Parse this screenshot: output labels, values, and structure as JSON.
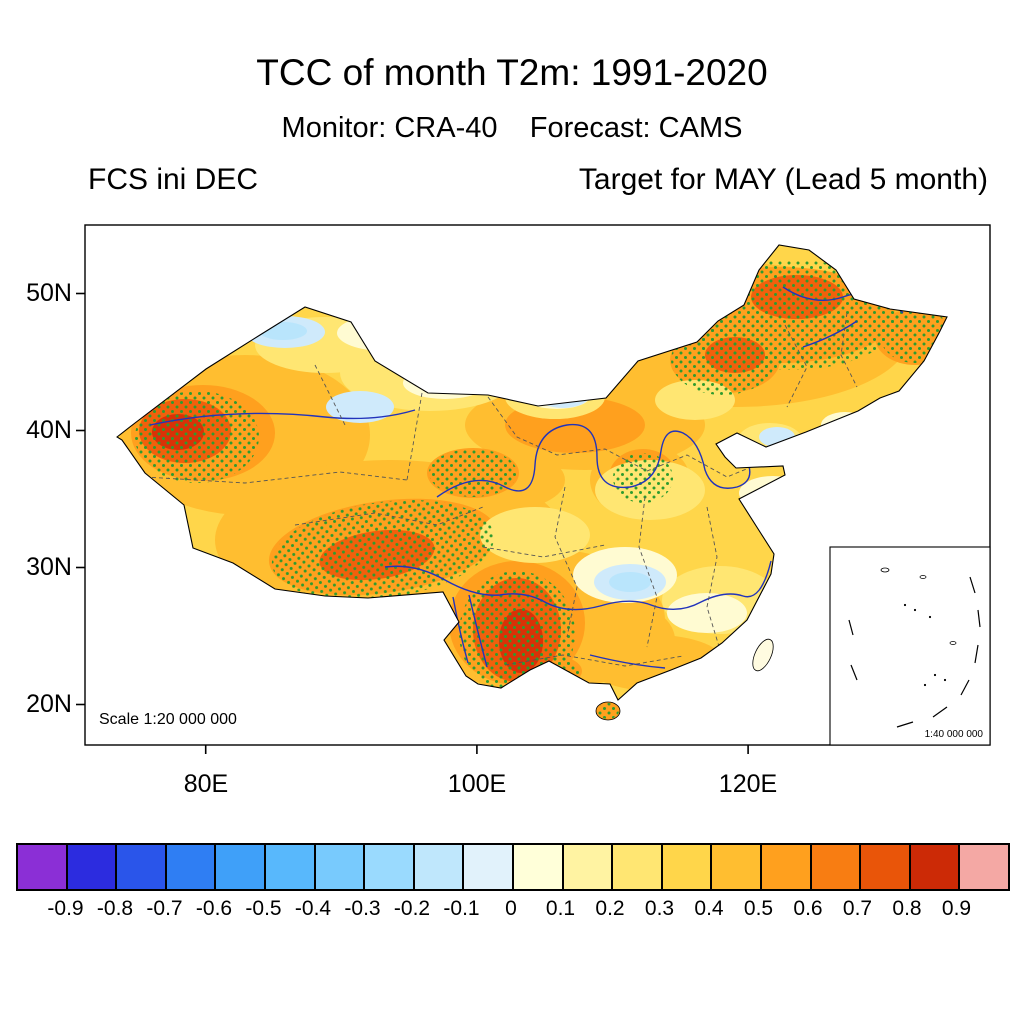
{
  "title": "TCC of month T2m: 1991-2020",
  "subtitle": "Monitor: CRA-40    Forecast: CAMS",
  "header": {
    "left": "FCS ini DEC",
    "right": "Target for MAY (Lead 5 month)"
  },
  "map": {
    "lat_labels": [
      "50N",
      "40N",
      "30N",
      "20N"
    ],
    "lon_labels": [
      "80E",
      "100E",
      "120E"
    ],
    "scale_label": "Scale 1:20 000 000",
    "inset_scale_label": "1:40 000 000",
    "stipple_color": "#2e9b2e",
    "river_color": "#2233bb"
  },
  "colorbar": {
    "tick_labels": [
      "-0.9",
      "-0.8",
      "-0.7",
      "-0.6",
      "-0.5",
      "-0.4",
      "-0.3",
      "-0.2",
      "-0.1",
      "0",
      "0.1",
      "0.2",
      "0.3",
      "0.4",
      "0.5",
      "0.6",
      "0.7",
      "0.8",
      "0.9"
    ],
    "colors": [
      "#8b2fd6",
      "#2c2cdf",
      "#2a55ea",
      "#2f7ef3",
      "#3fa0f9",
      "#58b8fc",
      "#78cafd",
      "#9adafe",
      "#bfe7fc",
      "#e1f2fb",
      "#ffffd9",
      "#fff3a2",
      "#ffe672",
      "#ffd64a",
      "#ffbe30",
      "#ffa01e",
      "#f87d12",
      "#e95509",
      "#cc2a06",
      "#f4a8a4"
    ]
  }
}
